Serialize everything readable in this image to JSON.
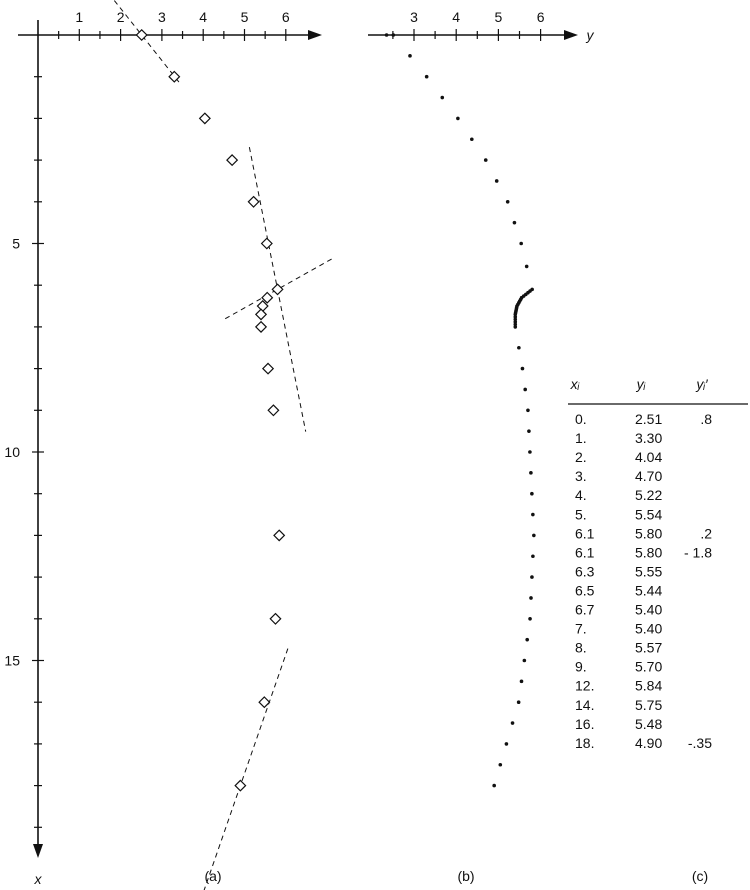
{
  "chart_data": [
    {
      "panel": "a",
      "type": "scatter",
      "panel_label": "(a)",
      "xlabel": "x",
      "ylabel": "",
      "note": "x runs downward (vertical axis), y runs to the right (horizontal axis)",
      "y_ticks": [
        "1",
        "2",
        "3",
        "4",
        "5",
        "6"
      ],
      "x_ticks": [
        "5",
        "10",
        "15"
      ],
      "y_range": [
        0,
        6.7
      ],
      "x_range": [
        0,
        19.6
      ],
      "points": [
        {
          "x": 0,
          "y": 2.51
        },
        {
          "x": 1,
          "y": 3.3
        },
        {
          "x": 2,
          "y": 4.04
        },
        {
          "x": 3,
          "y": 4.7
        },
        {
          "x": 4,
          "y": 5.22
        },
        {
          "x": 5,
          "y": 5.54
        },
        {
          "x": 6.1,
          "y": 5.8
        },
        {
          "x": 6.3,
          "y": 5.55
        },
        {
          "x": 6.5,
          "y": 5.44
        },
        {
          "x": 6.7,
          "y": 5.4
        },
        {
          "x": 7,
          "y": 5.4
        },
        {
          "x": 8,
          "y": 5.57
        },
        {
          "x": 9,
          "y": 5.7
        },
        {
          "x": 12,
          "y": 5.84
        },
        {
          "x": 14,
          "y": 5.75
        },
        {
          "x": 16,
          "y": 5.48
        },
        {
          "x": 18,
          "y": 4.9
        }
      ],
      "tangent_lines": [
        {
          "x": 0,
          "y": 2.51,
          "slope": 0.8
        },
        {
          "x": 6.1,
          "y": 5.8,
          "slope": 0.2
        },
        {
          "x": 6.1,
          "y": 5.8,
          "slope": -1.8
        },
        {
          "x": 18,
          "y": 4.9,
          "slope": -0.35
        }
      ]
    },
    {
      "panel": "b",
      "type": "line",
      "panel_label": "(b)",
      "ylabel": "y",
      "y_ticks": [
        "3",
        "4",
        "5",
        "6"
      ],
      "y_range": [
        2.2,
        6.7
      ],
      "x_range": [
        0,
        19.6
      ],
      "curve": [
        {
          "x": 0,
          "y": 2.51
        },
        {
          "x": 1,
          "y": 3.3
        },
        {
          "x": 2,
          "y": 4.04
        },
        {
          "x": 3,
          "y": 4.7
        },
        {
          "x": 4,
          "y": 5.22
        },
        {
          "x": 5,
          "y": 5.54
        },
        {
          "x": 6.1,
          "y": 5.8
        },
        {
          "x": 6.3,
          "y": 5.55
        },
        {
          "x": 6.5,
          "y": 5.44
        },
        {
          "x": 6.7,
          "y": 5.4
        },
        {
          "x": 7,
          "y": 5.4
        },
        {
          "x": 8,
          "y": 5.57
        },
        {
          "x": 9,
          "y": 5.7
        },
        {
          "x": 12,
          "y": 5.84
        },
        {
          "x": 14,
          "y": 5.75
        },
        {
          "x": 16,
          "y": 5.48
        },
        {
          "x": 18,
          "y": 4.9
        }
      ]
    },
    {
      "panel": "c",
      "type": "table",
      "panel_label": "(c)",
      "columns": [
        "xᵢ",
        "yᵢ",
        "yᵢ′"
      ],
      "rows": [
        [
          "0.",
          "2.51",
          ".8"
        ],
        [
          "1.",
          "3.30",
          ""
        ],
        [
          "2.",
          "4.04",
          ""
        ],
        [
          "3.",
          "4.70",
          ""
        ],
        [
          "4.",
          "5.22",
          ""
        ],
        [
          "5.",
          "5.54",
          ""
        ],
        [
          "6.1",
          "5.80",
          ".2"
        ],
        [
          "6.1",
          "5.80",
          "- 1.8"
        ],
        [
          "6.3",
          "5.55",
          ""
        ],
        [
          "6.5",
          "5.44",
          ""
        ],
        [
          "6.7",
          "5.40",
          ""
        ],
        [
          "7.",
          "5.40",
          ""
        ],
        [
          "8.",
          "5.57",
          ""
        ],
        [
          "9.",
          "5.70",
          ""
        ],
        [
          "12.",
          "5.84",
          ""
        ],
        [
          "14.",
          "5.75",
          ""
        ],
        [
          "16.",
          "5.48",
          ""
        ],
        [
          "18.",
          "4.90",
          "-.35"
        ]
      ]
    }
  ]
}
